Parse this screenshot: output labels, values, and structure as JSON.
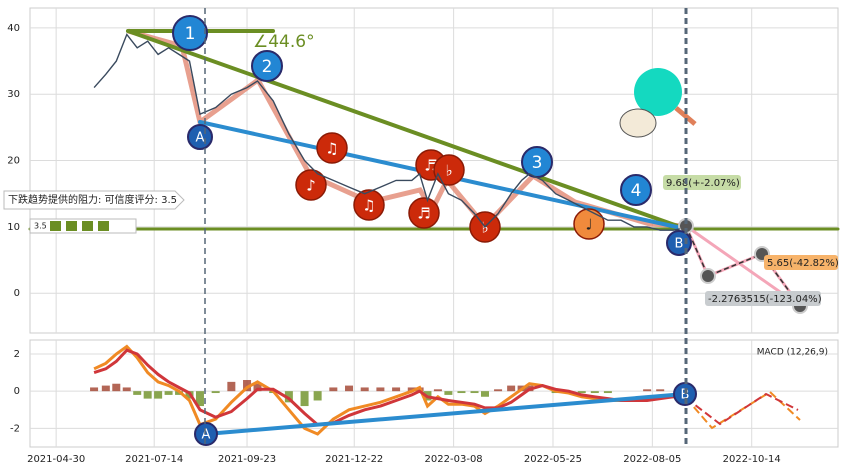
{
  "chart_data": [
    {
      "type": "line",
      "x": [
        29,
        38,
        46,
        54,
        62,
        70,
        78,
        86,
        94,
        102,
        110,
        122,
        134,
        146,
        154,
        166,
        178,
        190,
        200,
        212,
        224,
        236,
        248,
        260,
        272,
        278,
        284,
        292,
        300,
        310,
        320,
        328,
        338,
        348,
        356,
        362,
        372,
        382,
        392,
        402,
        412,
        422,
        432,
        442,
        452,
        462,
        472,
        477
      ],
      "values": [
        31,
        33,
        35,
        39,
        37,
        38,
        36,
        37,
        36,
        35,
        27,
        28,
        30,
        31,
        32,
        29,
        24,
        20,
        18,
        17,
        16,
        15,
        16,
        17,
        17,
        18,
        14,
        18,
        15,
        14,
        12,
        10,
        12,
        15,
        17,
        18,
        17,
        15,
        14,
        13,
        12,
        11,
        11,
        10,
        10,
        9.5,
        9.5,
        9.7
      ],
      "color": "#3a4a5e",
      "xlim": [
        -20,
        598
      ],
      "ylim": [
        -6,
        43
      ],
      "yticks": [
        0,
        10,
        20,
        30,
        40
      ],
      "grid": true,
      "annotations": {
        "angle": "∠44.6°",
        "resistance": "下跌趋势提供的阻力: 可信度评分: 3.5",
        "score": "3.5",
        "labels": [
          "1",
          "2",
          "3",
          "4",
          "A",
          "B"
        ],
        "notes": [
          "♫",
          "♪",
          "♫",
          "♬",
          "♬",
          "♭",
          "♭",
          "♩"
        ],
        "forecasts": [
          "9.68(+-2.07%)",
          "5.65(-42.82%)",
          "-2.2763515(-123.04%)"
        ]
      }
    },
    {
      "type": "macd",
      "title": "MACD (12,26,9)",
      "x": [
        29,
        38,
        46,
        54,
        62,
        70,
        78,
        86,
        94,
        102,
        110,
        122,
        134,
        146,
        154,
        166,
        178,
        190,
        200,
        212,
        224,
        236,
        248,
        260,
        272,
        278,
        284,
        292,
        300,
        310,
        320,
        328,
        338,
        348,
        356,
        362,
        372,
        382,
        392,
        402,
        412,
        422,
        432,
        442,
        452,
        462,
        472,
        477
      ],
      "series": [
        {
          "color": "#f08a24",
          "values": [
            1.2,
            1.5,
            2.0,
            2.4,
            1.8,
            1.0,
            0.5,
            0.3,
            0.0,
            -0.5,
            -1.8,
            -1.5,
            -0.6,
            0.2,
            0.5,
            0.0,
            -1.0,
            -2.0,
            -2.3,
            -1.5,
            -1.0,
            -0.8,
            -0.6,
            -0.3,
            0.0,
            0.2,
            -0.8,
            -0.3,
            -0.7,
            -0.7,
            -0.8,
            -1.2,
            -0.8,
            -0.3,
            0.1,
            0.4,
            0.3,
            0.0,
            -0.1,
            -0.3,
            -0.4,
            -0.5,
            -0.5,
            -0.5,
            -0.4,
            -0.3,
            -0.3,
            -0.2
          ]
        },
        {
          "color": "#d0363a",
          "values": [
            1.0,
            1.2,
            1.6,
            2.2,
            2.0,
            1.4,
            0.9,
            0.5,
            0.2,
            -0.1,
            -1.0,
            -1.4,
            -1.1,
            -0.4,
            0.1,
            0.1,
            -0.4,
            -1.2,
            -1.8,
            -1.7,
            -1.3,
            -1.0,
            -0.8,
            -0.5,
            -0.2,
            0.0,
            -0.3,
            -0.4,
            -0.5,
            -0.6,
            -0.7,
            -0.9,
            -0.9,
            -0.6,
            -0.2,
            0.1,
            0.3,
            0.1,
            0.0,
            -0.2,
            -0.3,
            -0.4,
            -0.5,
            -0.5,
            -0.5,
            -0.4,
            -0.3,
            -0.3
          ]
        }
      ],
      "histogram": {
        "values": [
          0.2,
          0.3,
          0.4,
          0.2,
          -0.2,
          -0.4,
          -0.4,
          -0.2,
          -0.2,
          -0.4,
          -0.8,
          -0.1,
          0.5,
          0.6,
          0.4,
          -0.1,
          -0.6,
          -0.8,
          -0.5,
          0.2,
          0.3,
          0.2,
          0.2,
          0.2,
          0.2,
          0.2,
          -0.5,
          0.1,
          -0.2,
          -0.1,
          -0.1,
          -0.3,
          0.1,
          0.3,
          0.3,
          0.3,
          0.0,
          -0.1,
          -0.1,
          -0.1,
          -0.1,
          -0.1,
          0,
          0,
          0.1,
          0.1,
          0,
          0.1
        ],
        "colors": [
          "#a0402c",
          "#6b8e23"
        ]
      },
      "xlim": [
        -20,
        598
      ],
      "ylim": [
        -3,
        2.75
      ],
      "yticks": [
        -2,
        0,
        2
      ],
      "xticks": [
        {
          "value": 0,
          "label": "2021-04-30"
        },
        {
          "value": 75,
          "label": "2021-07-14"
        },
        {
          "value": 146,
          "label": "2021-09-23"
        },
        {
          "value": 228,
          "label": "2021-12-22"
        },
        {
          "value": 304,
          "label": "2022-03-08"
        },
        {
          "value": 380,
          "label": "2022-05-25"
        },
        {
          "value": 456,
          "label": "2022-08-05"
        },
        {
          "value": 532,
          "label": "2022-10-14"
        }
      ],
      "labels": [
        "A",
        "B"
      ]
    }
  ]
}
